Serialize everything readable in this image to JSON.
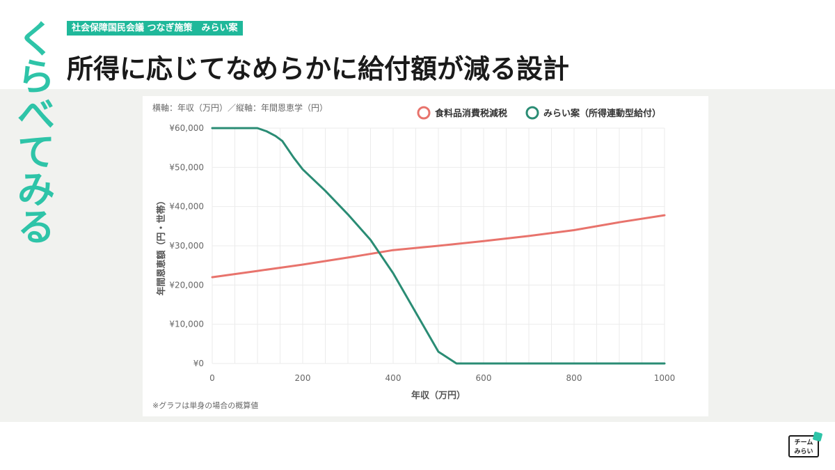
{
  "side_title": "くらべてみる",
  "tag": "社会保障国民会議 つなぎ施策　みらい案",
  "headline": "所得に応じてなめらかに給付額が減る設計",
  "chart_data": {
    "type": "line",
    "subtitle": "横軸：年収（万円）／縦軸：年間恩恵学（円）",
    "xlabel": "年収（万円）",
    "ylabel": "年間恩恵額（円・世帯）",
    "footnote": "※グラフは単身の場合の概算値",
    "xlim": [
      0,
      1000
    ],
    "ylim": [
      0,
      60000
    ],
    "x_ticks": [
      0,
      200,
      400,
      600,
      800,
      1000
    ],
    "y_ticks": [
      0,
      10000,
      20000,
      30000,
      40000,
      50000,
      60000
    ],
    "y_tick_labels": [
      "¥0",
      "¥10,000",
      "¥20,000",
      "¥30,000",
      "¥40,000",
      "¥50,000",
      "¥60,000"
    ],
    "grid": true,
    "legend_position": "top-right",
    "series": [
      {
        "name": "食料品消費税減税",
        "color": "#e8736c",
        "x": [
          0,
          100,
          200,
          300,
          400,
          500,
          600,
          700,
          800,
          900,
          1000
        ],
        "y": [
          22000,
          23600,
          25200,
          27000,
          28900,
          30000,
          31200,
          32500,
          34000,
          36000,
          37800
        ]
      },
      {
        "name": "みらい案（所得連動型給付）",
        "color": "#2a8c74",
        "x": [
          0,
          100,
          120,
          140,
          155,
          180,
          200,
          250,
          300,
          350,
          400,
          450,
          500,
          540,
          550,
          600,
          700,
          800,
          900,
          1000
        ],
        "y": [
          60000,
          60000,
          59200,
          58000,
          56700,
          52500,
          49500,
          44000,
          38000,
          31500,
          23000,
          13000,
          3000,
          0,
          0,
          0,
          0,
          0,
          0,
          0
        ]
      }
    ]
  },
  "logo": {
    "line1": "チーム",
    "line2": "みらい"
  }
}
